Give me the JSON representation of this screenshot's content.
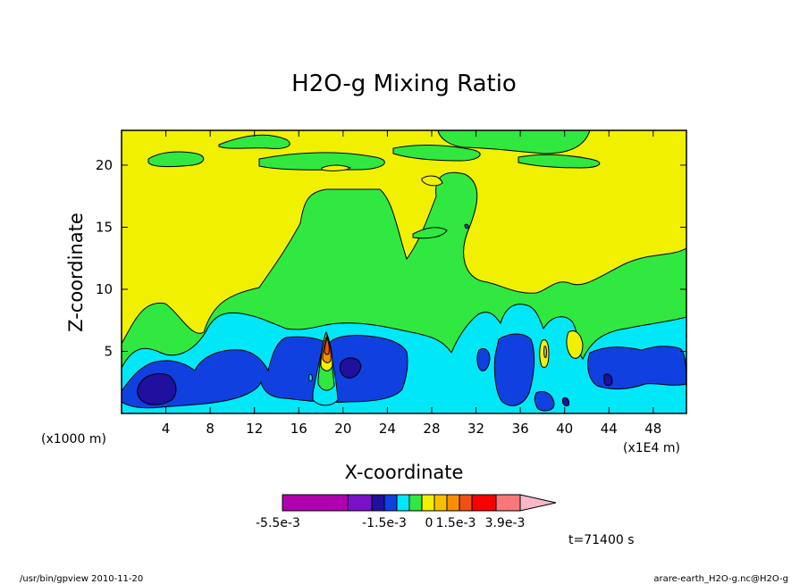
{
  "chart_data": {
    "type": "heatmap",
    "title": "H2O-g Mixing Ratio",
    "xlabel": "X-coordinate",
    "ylabel": "Z-coordinate",
    "x_unit_label": "(x1000 m)",
    "x_multiplier_label": "(x1E4 m)",
    "x_ticks": [
      4,
      8,
      12,
      16,
      20,
      24,
      28,
      32,
      36,
      40,
      44,
      48
    ],
    "y_ticks": [
      5,
      10,
      15,
      20
    ],
    "xlim": [
      0,
      51
    ],
    "ylim": [
      0,
      22.8
    ],
    "colorbar": {
      "colors": [
        "#b000b0",
        "#7a10c8",
        "#2010a0",
        "#1040e0",
        "#00e8f8",
        "#30e840",
        "#f0f000",
        "#f8c000",
        "#f89000",
        "#f05010",
        "#f80000",
        "#f87878",
        "#f8b8c8"
      ],
      "label_values": [
        "-5.5e-3",
        "-1.5e-3",
        "0",
        "1.5e-3",
        "3.9e-3"
      ]
    },
    "time_label": "t=71400 s"
  },
  "footer": {
    "left": "/usr/bin/gpview  2010-11-20",
    "right": "arare-earth_H2O-g.nc@H2O-g"
  }
}
